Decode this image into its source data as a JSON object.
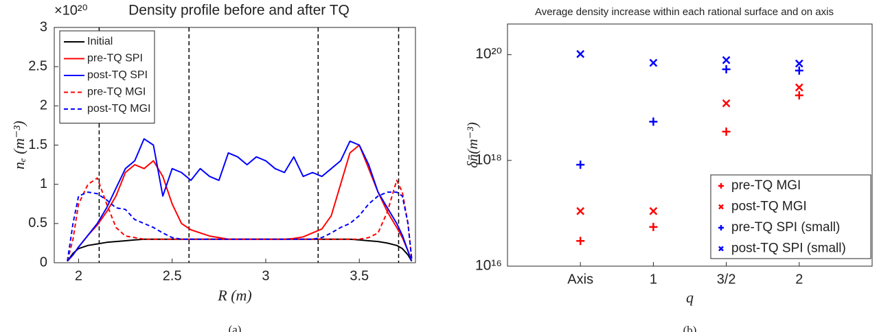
{
  "chart_data": [
    {
      "type": "line",
      "title": "Density profile before and after TQ",
      "multiplier": "×10²⁰",
      "x_label": "R (m)",
      "y_label": "nₑ (m⁻³)",
      "caption": "(a)",
      "xlim": [
        1.87,
        3.8
      ],
      "ylim": [
        0,
        3
      ],
      "xticks": [
        2,
        2.5,
        3,
        3.5
      ],
      "yticks": [
        0,
        0.5,
        1,
        1.5,
        2,
        2.5,
        3
      ],
      "vlines": [
        2.11,
        2.59,
        3.28,
        3.71
      ],
      "legend": "upper left",
      "x": [
        1.94,
        1.97,
        2.0,
        2.05,
        2.1,
        2.15,
        2.2,
        2.25,
        2.3,
        2.35,
        2.4,
        2.45,
        2.5,
        2.55,
        2.6,
        2.65,
        2.7,
        2.75,
        2.8,
        2.85,
        2.9,
        2.95,
        3.0,
        3.05,
        3.1,
        3.15,
        3.2,
        3.25,
        3.3,
        3.35,
        3.4,
        3.45,
        3.5,
        3.55,
        3.6,
        3.65,
        3.7,
        3.73,
        3.76,
        3.78
      ],
      "series": [
        {
          "name": "Initial",
          "color": "#000000",
          "dashed": false,
          "values": [
            0.02,
            0.12,
            0.18,
            0.22,
            0.24,
            0.26,
            0.27,
            0.28,
            0.29,
            0.3,
            0.3,
            0.3,
            0.3,
            0.3,
            0.3,
            0.3,
            0.3,
            0.3,
            0.3,
            0.3,
            0.3,
            0.3,
            0.3,
            0.3,
            0.3,
            0.3,
            0.3,
            0.3,
            0.3,
            0.3,
            0.3,
            0.3,
            0.29,
            0.28,
            0.27,
            0.25,
            0.22,
            0.18,
            0.1,
            0.02
          ]
        },
        {
          "name": "pre-TQ SPI",
          "color": "#ff0000",
          "dashed": false,
          "values": [
            0.02,
            0.1,
            0.2,
            0.35,
            0.48,
            0.65,
            0.85,
            1.15,
            1.25,
            1.2,
            1.3,
            1.1,
            0.75,
            0.5,
            0.42,
            0.38,
            0.34,
            0.32,
            0.3,
            0.3,
            0.3,
            0.3,
            0.3,
            0.3,
            0.3,
            0.31,
            0.33,
            0.38,
            0.43,
            0.6,
            1.0,
            1.4,
            1.5,
            1.2,
            0.9,
            0.65,
            0.45,
            0.32,
            0.15,
            0.02
          ]
        },
        {
          "name": "post-TQ SPI",
          "color": "#0000ff",
          "dashed": false,
          "values": [
            0.02,
            0.1,
            0.2,
            0.35,
            0.5,
            0.7,
            0.95,
            1.2,
            1.3,
            1.58,
            1.5,
            0.85,
            1.2,
            1.15,
            1.05,
            1.2,
            1.1,
            1.05,
            1.4,
            1.35,
            1.25,
            1.35,
            1.3,
            1.2,
            1.15,
            1.35,
            1.1,
            1.15,
            1.1,
            1.2,
            1.3,
            1.55,
            1.5,
            1.25,
            0.9,
            0.7,
            0.5,
            0.35,
            0.15,
            0.02
          ]
        },
        {
          "name": "pre-TQ MGI",
          "color": "#ff0000",
          "dashed": true,
          "values": [
            0.02,
            0.3,
            0.75,
            1.0,
            1.08,
            0.75,
            0.45,
            0.34,
            0.32,
            0.3,
            0.3,
            0.3,
            0.3,
            0.3,
            0.3,
            0.3,
            0.3,
            0.3,
            0.3,
            0.3,
            0.3,
            0.3,
            0.3,
            0.3,
            0.3,
            0.3,
            0.3,
            0.3,
            0.3,
            0.3,
            0.3,
            0.3,
            0.3,
            0.32,
            0.38,
            0.65,
            1.05,
            0.9,
            0.5,
            0.05
          ]
        },
        {
          "name": "post-TQ MGI",
          "color": "#0000ff",
          "dashed": true,
          "values": [
            0.02,
            0.5,
            0.85,
            0.9,
            0.88,
            0.8,
            0.7,
            0.68,
            0.55,
            0.5,
            0.45,
            0.38,
            0.32,
            0.3,
            0.3,
            0.3,
            0.3,
            0.3,
            0.3,
            0.3,
            0.3,
            0.3,
            0.3,
            0.3,
            0.3,
            0.3,
            0.3,
            0.3,
            0.32,
            0.38,
            0.45,
            0.5,
            0.6,
            0.75,
            0.85,
            0.9,
            0.9,
            0.85,
            0.5,
            0.05
          ]
        }
      ]
    },
    {
      "type": "scatter",
      "title": "Average density increase within each rational surface and on axis",
      "x_label": "q",
      "y_label": "δn̄(m⁻³)",
      "caption": "(b)",
      "log_y": true,
      "ylim": [
        1e+16,
        3.8e+20
      ],
      "yticks": [
        {
          "value": 1e+16,
          "label": "10¹⁶"
        },
        {
          "value": 1e+18,
          "label": "10¹⁸"
        },
        {
          "value": 1e+20,
          "label": "10²⁰"
        }
      ],
      "legend": "lower right",
      "categories": [
        "Axis",
        "1",
        "3/2",
        "2"
      ],
      "series": [
        {
          "name": "pre-TQ MGI",
          "color": "#ff0000",
          "marker": "+",
          "values": [
            3e+16,
            5.5e+16,
            3.5e+18,
            1.7e+19
          ]
        },
        {
          "name": "post-TQ MGI",
          "color": "#ff0000",
          "marker": "x",
          "values": [
            1.1e+17,
            1.1e+17,
            1.2e+19,
            2.4e+19
          ]
        },
        {
          "name": "pre-TQ SPI (small)",
          "color": "#0000ff",
          "marker": "+",
          "values": [
            8.3e+17,
            5.4e+18,
            5.3e+19,
            5e+19
          ]
        },
        {
          "name": "post-TQ SPI (small)",
          "color": "#0000ff",
          "marker": "x",
          "values": [
            1.03e+20,
            7e+19,
            7.9e+19,
            6.8e+19
          ]
        }
      ]
    }
  ]
}
